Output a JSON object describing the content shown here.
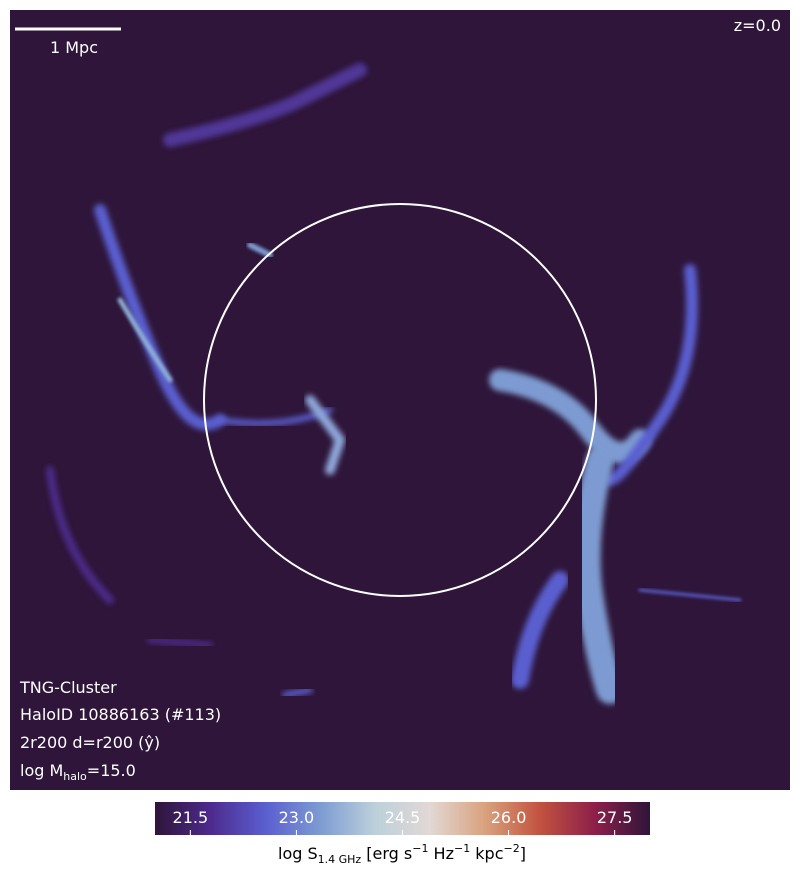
{
  "chart_data": {
    "type": "image",
    "redshift_label": "z=0.0",
    "scale_bar_label": "1 Mpc",
    "annotations": [
      "TNG-Cluster",
      "HaloID 10886163 (#113)",
      "2r200 d=r200 (ŷ)"
    ],
    "mass_label": {
      "main": "log M",
      "sub": "halo",
      "rest": "=15.0"
    },
    "colorbar_label": {
      "main": "log S",
      "sub": "1.4 GHz",
      "units": [
        " [erg s",
        "−1",
        " Hz",
        "−1",
        " kpc",
        "−2",
        "]"
      ]
    },
    "clim": [
      21,
      28
    ],
    "cticks": [
      21.5,
      {
        "value": 23,
        "label": "23.0"
      },
      24.5,
      {
        "value": 26,
        "label": "26.0"
      },
      27.5
    ],
    "colormap_colors": [
      "#2e1539",
      "#4d2a8c",
      "#5a5ed0",
      "#7d9bd2",
      "#bcd0db",
      "#e2d8d5",
      "#d9a27e",
      "#c2523f",
      "#8d1f4a",
      "#2e1539"
    ]
  }
}
